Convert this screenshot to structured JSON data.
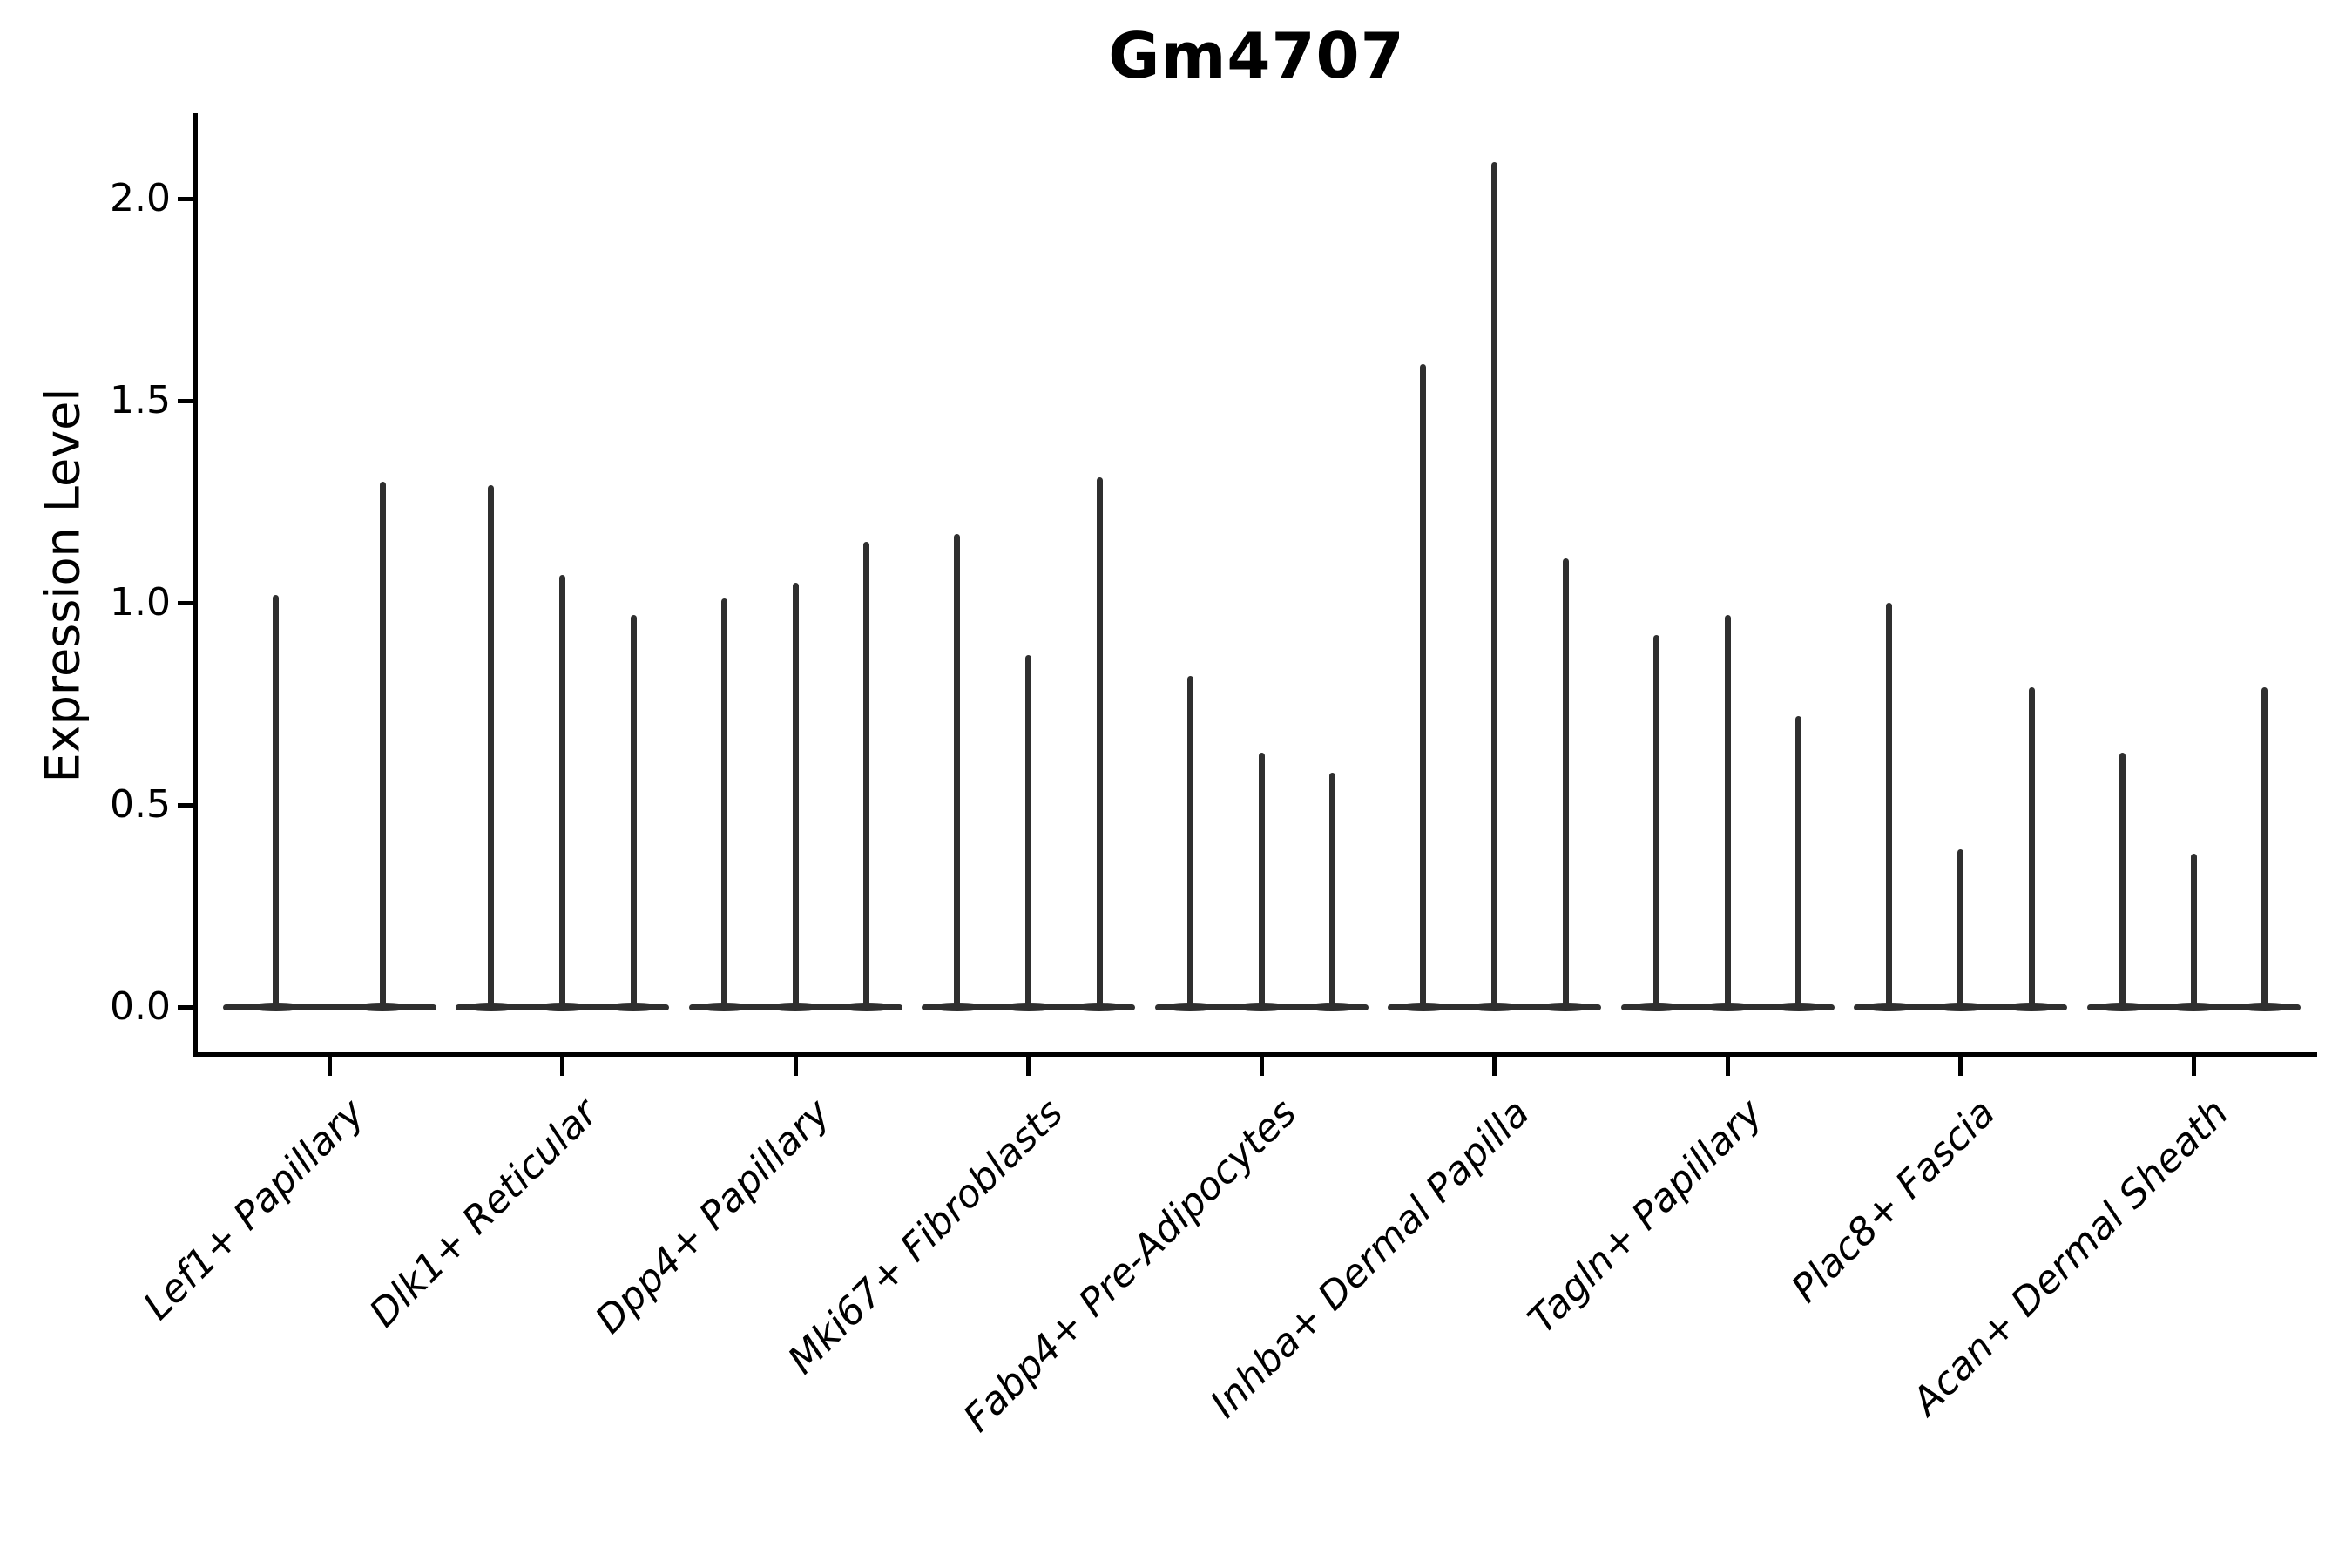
{
  "chart_data": {
    "type": "violin",
    "title": "Gm4707",
    "xlabel": "",
    "ylabel": "Expression Level",
    "ylim": [
      -0.12,
      2.21
    ],
    "yticks": [
      0.0,
      0.5,
      1.0,
      1.5,
      2.0
    ],
    "ytick_labels": [
      "0.0",
      "0.5",
      "1.0",
      "1.5",
      "2.0"
    ],
    "grid": false,
    "legend_position": "none",
    "categories": [
      "Lef1+ Papillary",
      "Dlk1+ Reticular",
      "Dpp4+ Papillary",
      "Mki67+ Fibroblasts",
      "Fabp4+ Pre-Adipocytes",
      "Inhba+ Dermal Papilla",
      "Tagln+ Papillary",
      "Plac8+ Fascia",
      "Acan+ Dermal Sheath"
    ],
    "groups": [
      {
        "category": "Lef1+ Papillary",
        "violin_maxima": [
          1.02,
          1.3
        ]
      },
      {
        "category": "Dlk1+ Reticular",
        "violin_maxima": [
          1.29,
          1.07,
          0.97
        ]
      },
      {
        "category": "Dpp4+ Papillary",
        "violin_maxima": [
          1.01,
          1.05,
          1.15
        ]
      },
      {
        "category": "Mki67+ Fibroblasts",
        "violin_maxima": [
          1.17,
          0.87,
          1.31
        ]
      },
      {
        "category": "Fabp4+ Pre-Adipocytes",
        "violin_maxima": [
          0.82,
          0.63,
          0.58
        ]
      },
      {
        "category": "Inhba+ Dermal Papilla",
        "violin_maxima": [
          1.59,
          2.09,
          1.11
        ]
      },
      {
        "category": "Tagln+ Papillary",
        "violin_maxima": [
          0.92,
          0.97,
          0.72
        ]
      },
      {
        "category": "Plac8+ Fascia",
        "violin_maxima": [
          1.0,
          0.39,
          0.79
        ]
      },
      {
        "category": "Acan+ Dermal Sheath",
        "violin_maxima": [
          0.63,
          0.38,
          0.79
        ]
      }
    ],
    "colors": {
      "violin": "#2f2f2f",
      "axis": "#000000",
      "text": "#000000",
      "background": "#ffffff"
    }
  }
}
